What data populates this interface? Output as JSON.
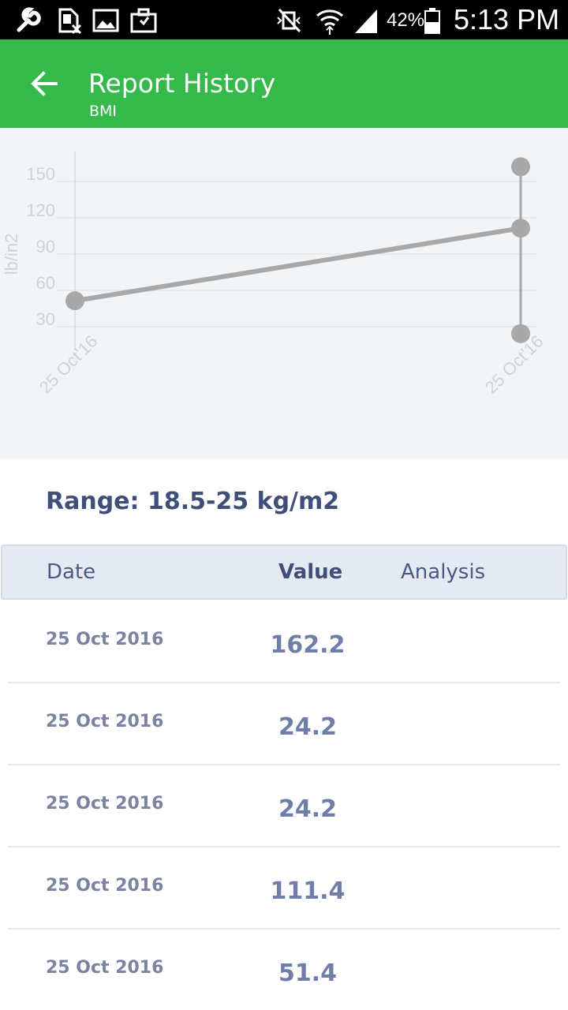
{
  "status_bar": {
    "battery_percent": "42%",
    "time": "5:13 PM",
    "icons": [
      "wrench-icon",
      "sim-card-off-icon",
      "image-icon",
      "briefcase-icon",
      "mute-vibrate-icon",
      "wifi-icon",
      "signal-icon",
      "battery-icon"
    ]
  },
  "app_bar": {
    "title": "Report History",
    "subtitle": "BMI",
    "color": "#34b94a"
  },
  "chart_data": {
    "type": "line",
    "ylabel": "lb/in2",
    "xlabel": "",
    "yticks": [
      "150",
      "120",
      "90",
      "60",
      "30"
    ],
    "xticks": [
      "25 Oct'16",
      "25 Oct'16"
    ],
    "ylim": [
      20,
      170
    ],
    "grid": true,
    "series": [
      {
        "values": [
          51.4,
          111.4
        ],
        "x_index": [
          0,
          1
        ]
      }
    ],
    "range_bar": {
      "x_index": 1,
      "min": 24.2,
      "max": 162.2
    },
    "line_color": "#a8a8a8",
    "point_color": "#a8a8a8"
  },
  "range": {
    "text": "Range: 18.5-25 kg/m2"
  },
  "table": {
    "headers": {
      "date": "Date",
      "value": "Value",
      "analysis": "Analysis"
    },
    "rows": [
      {
        "date": "25 Oct 2016",
        "value": "162.2"
      },
      {
        "date": "25 Oct 2016",
        "value": "24.2"
      },
      {
        "date": "25 Oct 2016",
        "value": "24.2"
      },
      {
        "date": "25 Oct 2016",
        "value": "111.4"
      },
      {
        "date": "25 Oct 2016",
        "value": "51.4"
      }
    ]
  }
}
